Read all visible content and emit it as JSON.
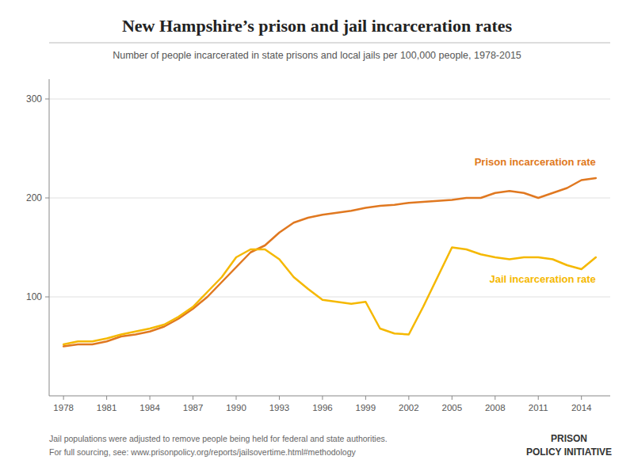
{
  "chart_data": {
    "type": "line",
    "title": "New Hampshire’s prison and jail incarceration rates",
    "subtitle": "Number of people incarcerated in state prisons and local jails per 100,000 people, 1978-2015",
    "annotations": [
      "Jail populations were adjusted to remove people being held for federal and state authorities.",
      "For full sourcing, see: www.prisonpolicy.org/reports/jailsovertime.html#methodology",
      "PRISON",
      "POLICY INITIATIVE"
    ],
    "x": [
      1978,
      1979,
      1980,
      1981,
      1982,
      1983,
      1984,
      1985,
      1986,
      1987,
      1988,
      1989,
      1990,
      1991,
      1992,
      1993,
      1994,
      1995,
      1996,
      1997,
      1998,
      1999,
      2000,
      2001,
      2002,
      2003,
      2004,
      2005,
      2006,
      2007,
      2008,
      2009,
      2010,
      2011,
      2012,
      2013,
      2014,
      2015
    ],
    "series": [
      {
        "name": "Prison incarceration rate",
        "color": "#e07820",
        "values": [
          50,
          52,
          52,
          55,
          60,
          62,
          65,
          70,
          78,
          88,
          100,
          115,
          130,
          145,
          152,
          165,
          175,
          180,
          183,
          185,
          187,
          190,
          192,
          193,
          195,
          196,
          197,
          198,
          200,
          200,
          205,
          207,
          205,
          200,
          205,
          210,
          218,
          220
        ]
      },
      {
        "name": "Jail incarceration rate",
        "color": "#f5b800",
        "values": [
          52,
          55,
          55,
          58,
          62,
          65,
          68,
          72,
          80,
          90,
          105,
          120,
          140,
          148,
          148,
          138,
          120,
          108,
          97,
          95,
          93,
          95,
          68,
          63,
          62,
          90,
          120,
          150,
          148,
          143,
          140,
          138,
          140,
          140,
          138,
          132,
          128,
          140
        ]
      }
    ],
    "xlim": [
      1977,
      2016
    ],
    "xticks": [
      1978,
      1981,
      1984,
      1987,
      1990,
      1993,
      1996,
      1999,
      2002,
      2005,
      2008,
      2011,
      2014
    ],
    "ylim": [
      0,
      320
    ],
    "yticks": [
      100,
      200,
      300
    ],
    "grid": true
  }
}
